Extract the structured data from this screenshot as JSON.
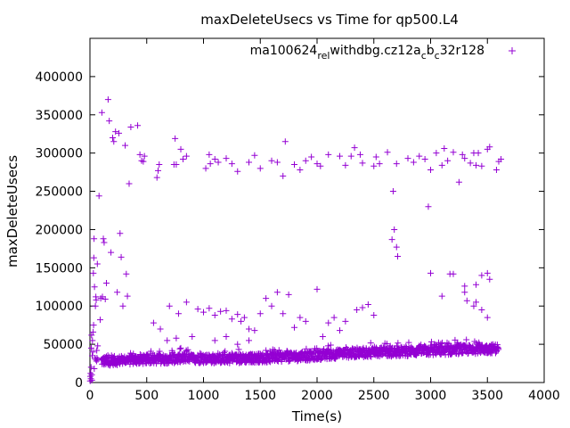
{
  "chart_data": {
    "type": "scatter",
    "title": "maxDeleteUsecs vs Time for qp500.L4",
    "xlabel": "Time(s)",
    "ylabel": "maxDeleteUsecs",
    "xlim": [
      0,
      4000
    ],
    "ylim": [
      0,
      450000
    ],
    "xticks": [
      0,
      500,
      1000,
      1500,
      2000,
      2500,
      3000,
      3500,
      4000
    ],
    "yticks": [
      0,
      50000,
      100000,
      150000,
      200000,
      250000,
      300000,
      350000,
      400000
    ],
    "xtick_labels": [
      "0",
      "500",
      "1000",
      "1500",
      "2000",
      "2500",
      "3000",
      "3500",
      "4000"
    ],
    "ytick_labels": [
      "0",
      "50000",
      "100000",
      "150000",
      "200000",
      "250000",
      "300000",
      "350000",
      "400000"
    ],
    "grid": false,
    "legend_position": "top-right",
    "marker": "plus",
    "color": "#9400D3",
    "series": [
      {
        "name": "ma100624_rel_withdbg.cz12a_c_b_c32r128",
        "name_main": "ma100624",
        "name_parts": [
          {
            "text": "rel",
            "sub": true
          },
          {
            "text": "withdbg.cz12a",
            "sub": false
          },
          {
            "text": "c",
            "sub": true
          },
          {
            "text": "b",
            "sub": false
          },
          {
            "text": "c",
            "sub": true
          },
          {
            "text": "32r128",
            "sub": false
          }
        ],
        "points": [
          [
            2,
            2000
          ],
          [
            4,
            8000
          ],
          [
            6,
            12000
          ],
          [
            8,
            5000
          ],
          [
            10,
            20000
          ],
          [
            12,
            45000
          ],
          [
            14,
            62000
          ],
          [
            16,
            10000
          ],
          [
            18,
            3000
          ],
          [
            20,
            35000
          ],
          [
            22,
            55000
          ],
          [
            25,
            40000
          ],
          [
            28,
            66000
          ],
          [
            30,
            143000
          ],
          [
            32,
            75000
          ],
          [
            34,
            163000
          ],
          [
            36,
            188000
          ],
          [
            38,
            18000
          ],
          [
            40,
            125000
          ],
          [
            45,
            32000
          ],
          [
            48,
            100000
          ],
          [
            50,
            30000
          ],
          [
            52,
            112000
          ],
          [
            55,
            108000
          ],
          [
            58,
            28000
          ],
          [
            60,
            42000
          ],
          [
            62,
            32000
          ],
          [
            65,
            155000
          ],
          [
            68,
            48000
          ],
          [
            70,
            30000
          ],
          [
            80,
            244000
          ],
          [
            90,
            82000
          ],
          [
            95,
            110000
          ],
          [
            105,
            353000
          ],
          [
            110,
            112000
          ],
          [
            118,
            188000
          ],
          [
            125,
            183000
          ],
          [
            135,
            109000
          ],
          [
            145,
            130000
          ],
          [
            160,
            370000
          ],
          [
            170,
            342000
          ],
          [
            185,
            170000
          ],
          [
            200,
            320000
          ],
          [
            210,
            315000
          ],
          [
            225,
            328000
          ],
          [
            240,
            118000
          ],
          [
            255,
            326000
          ],
          [
            265,
            195000
          ],
          [
            275,
            164000
          ],
          [
            290,
            100000
          ],
          [
            310,
            310000
          ],
          [
            320,
            142000
          ],
          [
            330,
            113000
          ],
          [
            345,
            260000
          ],
          [
            360,
            334000
          ],
          [
            420,
            336000
          ],
          [
            440,
            298000
          ],
          [
            455,
            290000
          ],
          [
            470,
            289000
          ],
          [
            480,
            296000
          ],
          [
            590,
            268000
          ],
          [
            600,
            277000
          ],
          [
            610,
            285000
          ],
          [
            740,
            285000
          ],
          [
            750,
            319000
          ],
          [
            760,
            285000
          ],
          [
            800,
            305000
          ],
          [
            820,
            292000
          ],
          [
            850,
            296000
          ],
          [
            1020,
            280000
          ],
          [
            1050,
            298000
          ],
          [
            1060,
            286000
          ],
          [
            1100,
            292000
          ],
          [
            1130,
            288000
          ],
          [
            1200,
            293000
          ],
          [
            1250,
            286000
          ],
          [
            1300,
            276000
          ],
          [
            1400,
            288000
          ],
          [
            1450,
            297000
          ],
          [
            1500,
            280000
          ],
          [
            1600,
            290000
          ],
          [
            1650,
            288000
          ],
          [
            1700,
            270000
          ],
          [
            1720,
            315000
          ],
          [
            1800,
            285000
          ],
          [
            1850,
            278000
          ],
          [
            1900,
            290000
          ],
          [
            1950,
            295000
          ],
          [
            2000,
            286000
          ],
          [
            2030,
            283000
          ],
          [
            2100,
            298000
          ],
          [
            2200,
            296000
          ],
          [
            2250,
            284000
          ],
          [
            2300,
            296000
          ],
          [
            2330,
            307000
          ],
          [
            2380,
            298000
          ],
          [
            2400,
            287000
          ],
          [
            2500,
            283000
          ],
          [
            2520,
            295000
          ],
          [
            2550,
            286000
          ],
          [
            2620,
            301000
          ],
          [
            2700,
            286000
          ],
          [
            2800,
            293000
          ],
          [
            2850,
            288000
          ],
          [
            2900,
            296000
          ],
          [
            2950,
            292000
          ],
          [
            3000,
            278000
          ],
          [
            3050,
            300000
          ],
          [
            3100,
            284000
          ],
          [
            3120,
            306000
          ],
          [
            3150,
            290000
          ],
          [
            3200,
            301000
          ],
          [
            3250,
            262000
          ],
          [
            3280,
            298000
          ],
          [
            3300,
            293000
          ],
          [
            3350,
            287000
          ],
          [
            3380,
            300000
          ],
          [
            3400,
            284000
          ],
          [
            3420,
            300000
          ],
          [
            3450,
            283000
          ],
          [
            3500,
            305000
          ],
          [
            3520,
            308000
          ],
          [
            3580,
            278000
          ],
          [
            3600,
            289000
          ],
          [
            3620,
            292000
          ],
          [
            2670,
            250000
          ],
          [
            2660,
            187000
          ],
          [
            2680,
            200000
          ],
          [
            2700,
            177000
          ],
          [
            2710,
            165000
          ],
          [
            2980,
            230000
          ],
          [
            3000,
            143000
          ],
          [
            3100,
            113000
          ],
          [
            3170,
            142000
          ],
          [
            3200,
            142000
          ],
          [
            3300,
            126000
          ],
          [
            3320,
            107000
          ],
          [
            3400,
            128000
          ],
          [
            3450,
            140000
          ],
          [
            3500,
            143000
          ],
          [
            3520,
            135000
          ],
          [
            3380,
            100000
          ],
          [
            3450,
            95000
          ],
          [
            3500,
            85000
          ],
          [
            3300,
            118000
          ],
          [
            3400,
            105000
          ],
          [
            2350,
            95000
          ],
          [
            2400,
            98000
          ],
          [
            2450,
            102000
          ],
          [
            2500,
            88000
          ],
          [
            700,
            100000
          ],
          [
            780,
            90000
          ],
          [
            850,
            105000
          ],
          [
            950,
            96000
          ],
          [
            1000,
            92000
          ],
          [
            1050,
            97000
          ],
          [
            1100,
            88000
          ],
          [
            1150,
            93000
          ],
          [
            1200,
            94000
          ],
          [
            1250,
            83000
          ],
          [
            1300,
            89000
          ],
          [
            1330,
            80000
          ],
          [
            1360,
            85000
          ],
          [
            1400,
            70000
          ],
          [
            1450,
            68000
          ],
          [
            1500,
            90000
          ],
          [
            1550,
            110000
          ],
          [
            1600,
            100000
          ],
          [
            1650,
            118000
          ],
          [
            1700,
            90000
          ],
          [
            1750,
            115000
          ],
          [
            1800,
            72000
          ],
          [
            1850,
            85000
          ],
          [
            1900,
            80000
          ],
          [
            2000,
            122000
          ],
          [
            2050,
            60000
          ],
          [
            2100,
            78000
          ],
          [
            2150,
            85000
          ],
          [
            2200,
            68000
          ],
          [
            2250,
            80000
          ],
          [
            560,
            78000
          ],
          [
            620,
            70000
          ],
          [
            680,
            55000
          ],
          [
            760,
            58000
          ],
          [
            800,
            45000
          ],
          [
            900,
            60000
          ],
          [
            1100,
            55000
          ],
          [
            1200,
            60000
          ],
          [
            1300,
            50000
          ],
          [
            1400,
            55000
          ]
        ],
        "band": [
          {
            "x": 100,
            "y": 28000
          },
          {
            "x": 300,
            "y": 29000
          },
          {
            "x": 500,
            "y": 30000
          },
          {
            "x": 700,
            "y": 31000
          },
          {
            "x": 900,
            "y": 31500
          },
          {
            "x": 1100,
            "y": 31000
          },
          {
            "x": 1300,
            "y": 31500
          },
          {
            "x": 1500,
            "y": 32000
          },
          {
            "x": 1700,
            "y": 33000
          },
          {
            "x": 1900,
            "y": 34500
          },
          {
            "x": 2100,
            "y": 36500
          },
          {
            "x": 2300,
            "y": 38500
          },
          {
            "x": 2500,
            "y": 39500
          },
          {
            "x": 2700,
            "y": 40000
          },
          {
            "x": 2900,
            "y": 41000
          },
          {
            "x": 3100,
            "y": 42000
          },
          {
            "x": 3300,
            "y": 43000
          },
          {
            "x": 3500,
            "y": 44000
          },
          {
            "x": 3600,
            "y": 44500
          }
        ],
        "band_spread": 6000
      }
    ]
  }
}
